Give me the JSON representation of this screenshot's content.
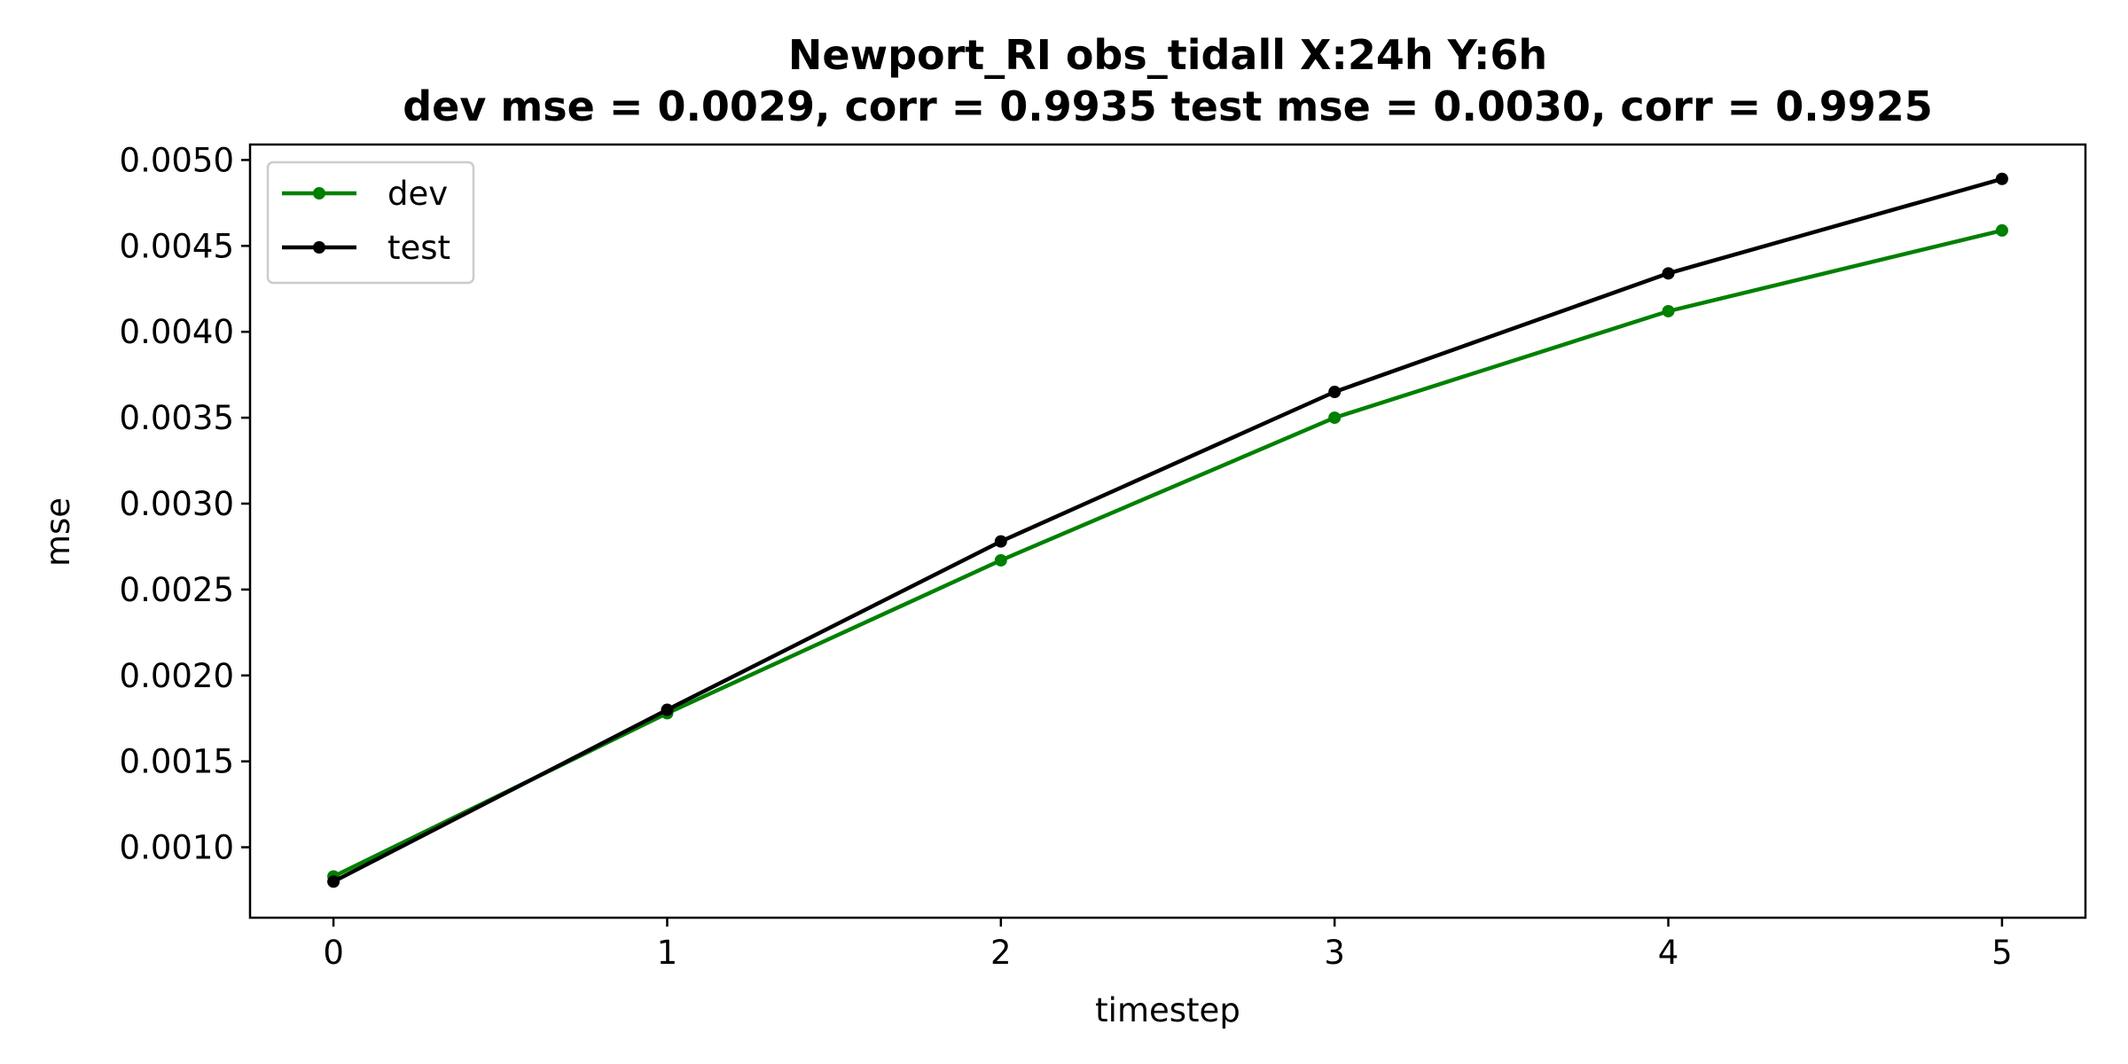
{
  "chart_data": {
    "type": "line",
    "title_line1": "Newport_RI   obs_tidall   X:24h   Y:6h",
    "title_line2": "dev mse = 0.0029, corr = 0.9935   test mse = 0.0030, corr = 0.9925",
    "xlabel": "timestep",
    "ylabel": "mse",
    "xlim": [
      -0.25,
      5.25
    ],
    "ylim": [
      0.00059,
      0.00509
    ],
    "xticks": [
      0,
      1,
      2,
      3,
      4,
      5
    ],
    "xtick_labels": [
      "0",
      "1",
      "2",
      "3",
      "4",
      "5"
    ],
    "yticks": [
      0.001,
      0.0015,
      0.002,
      0.0025,
      0.003,
      0.0035,
      0.004,
      0.0045,
      0.005
    ],
    "ytick_labels": [
      "0.0010",
      "0.0015",
      "0.0020",
      "0.0025",
      "0.0030",
      "0.0035",
      "0.0040",
      "0.0045",
      "0.0050"
    ],
    "grid": false,
    "legend_position": "top-left",
    "x": [
      0,
      1,
      2,
      3,
      4,
      5
    ],
    "series": [
      {
        "name": "dev",
        "color": "#008000",
        "marker": "circle",
        "values": [
          0.00083,
          0.00178,
          0.00267,
          0.0035,
          0.00412,
          0.00459
        ]
      },
      {
        "name": "test",
        "color": "#000000",
        "marker": "circle",
        "values": [
          0.0008,
          0.0018,
          0.00278,
          0.00365,
          0.00434,
          0.00489
        ]
      }
    ]
  }
}
